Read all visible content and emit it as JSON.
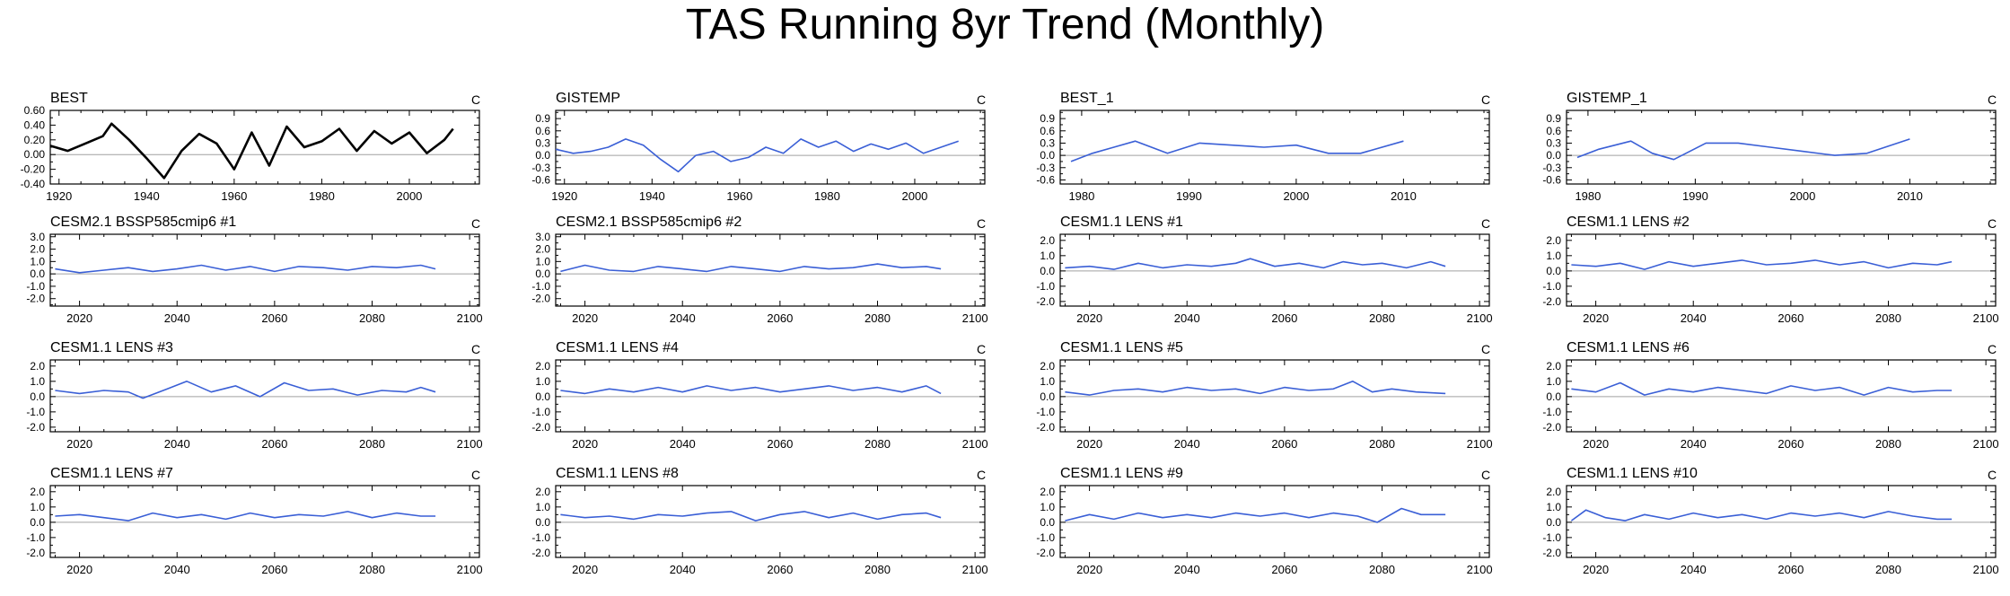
{
  "page": {
    "title": "TAS Running 8yr Trend (Monthly)"
  },
  "colors": {
    "main_series": "#000000",
    "series": "#3a5fd6",
    "zero_line": "#a0a0a0",
    "axes": "#000000"
  },
  "chart_data": [
    {
      "type": "line",
      "title": "BEST",
      "unit_label": "C",
      "xlim": [
        1918,
        2016
      ],
      "ylim": [
        -0.4,
        0.6
      ],
      "xticks": [
        1920,
        1940,
        1960,
        1980,
        2000
      ],
      "yticks": [
        -0.4,
        -0.2,
        0.0,
        0.2,
        0.4,
        0.6
      ],
      "ytick_labels": [
        "-0.40",
        "-0.20",
        "0.00",
        "0.20",
        "0.40",
        "0.60"
      ],
      "line_color": "#000000",
      "line_width": 2.6,
      "x": [
        1918,
        1922,
        1926,
        1930,
        1932,
        1936,
        1940,
        1944,
        1948,
        1952,
        1956,
        1960,
        1964,
        1968,
        1972,
        1976,
        1980,
        1984,
        1988,
        1992,
        1996,
        2000,
        2004,
        2008,
        2010
      ],
      "y": [
        0.12,
        0.05,
        0.15,
        0.25,
        0.42,
        0.2,
        -0.05,
        -0.32,
        0.05,
        0.28,
        0.15,
        -0.2,
        0.3,
        -0.15,
        0.38,
        0.1,
        0.18,
        0.35,
        0.05,
        0.32,
        0.15,
        0.3,
        0.02,
        0.2,
        0.35
      ]
    },
    {
      "type": "line",
      "title": "GISTEMP",
      "unit_label": "C",
      "xlim": [
        1918,
        2016
      ],
      "ylim": [
        -0.7,
        1.1
      ],
      "xticks": [
        1920,
        1940,
        1960,
        1980,
        2000
      ],
      "yticks": [
        -0.6,
        -0.3,
        0.0,
        0.3,
        0.6,
        0.9
      ],
      "ytick_labels": [
        "-0.6",
        "-0.3",
        "0.0",
        "0.3",
        "0.6",
        "0.9"
      ],
      "line_color": "#3a5fd6",
      "line_width": 1.6,
      "x": [
        1918,
        1922,
        1926,
        1930,
        1934,
        1938,
        1942,
        1946,
        1950,
        1954,
        1958,
        1962,
        1966,
        1970,
        1974,
        1978,
        1982,
        1986,
        1990,
        1994,
        1998,
        2002,
        2006,
        2010
      ],
      "y": [
        0.15,
        0.05,
        0.1,
        0.2,
        0.4,
        0.25,
        -0.1,
        -0.4,
        0.0,
        0.1,
        -0.15,
        -0.05,
        0.2,
        0.05,
        0.4,
        0.2,
        0.35,
        0.1,
        0.28,
        0.15,
        0.3,
        0.05,
        0.2,
        0.35
      ]
    },
    {
      "type": "line",
      "title": "BEST_1",
      "unit_label": "C",
      "xlim": [
        1978,
        2018
      ],
      "ylim": [
        -0.7,
        1.1
      ],
      "xticks": [
        1980,
        1990,
        2000,
        2010
      ],
      "yticks": [
        -0.6,
        -0.3,
        0.0,
        0.3,
        0.6,
        0.9
      ],
      "ytick_labels": [
        "-0.6",
        "-0.3",
        "0.0",
        "0.3",
        "0.6",
        "0.9"
      ],
      "line_color": "#3a5fd6",
      "line_width": 1.6,
      "x": [
        1979,
        1981,
        1983,
        1985,
        1988,
        1991,
        1994,
        1997,
        2000,
        2003,
        2006,
        2010
      ],
      "y": [
        -0.15,
        0.05,
        0.2,
        0.35,
        0.05,
        0.3,
        0.25,
        0.2,
        0.25,
        0.05,
        0.05,
        0.35
      ]
    },
    {
      "type": "line",
      "title": "GISTEMP_1",
      "unit_label": "C",
      "xlim": [
        1978,
        2018
      ],
      "ylim": [
        -0.7,
        1.1
      ],
      "xticks": [
        1980,
        1990,
        2000,
        2010
      ],
      "yticks": [
        -0.6,
        -0.3,
        0.0,
        0.3,
        0.6,
        0.9
      ],
      "ytick_labels": [
        "-0.6",
        "-0.3",
        "0.0",
        "0.3",
        "0.6",
        "0.9"
      ],
      "line_color": "#3a5fd6",
      "line_width": 1.6,
      "x": [
        1979,
        1981,
        1984,
        1986,
        1988,
        1991,
        1994,
        1997,
        2000,
        2003,
        2006,
        2010
      ],
      "y": [
        -0.05,
        0.15,
        0.35,
        0.05,
        -0.1,
        0.3,
        0.3,
        0.2,
        0.1,
        0.0,
        0.05,
        0.4
      ]
    },
    {
      "type": "line",
      "title": "CESM2.1 BSSP585cmip6 #1",
      "unit_label": "C",
      "xlim": [
        2014,
        2102
      ],
      "ylim": [
        -2.6,
        3.2
      ],
      "xticks": [
        2020,
        2040,
        2060,
        2080,
        2100
      ],
      "yticks": [
        -2.0,
        -1.0,
        0.0,
        1.0,
        2.0,
        3.0
      ],
      "ytick_labels": [
        "-2.0",
        "-1.0",
        "0.0",
        "1.0",
        "2.0",
        "3.0"
      ],
      "line_color": "#3a5fd6",
      "line_width": 1.6,
      "x": [
        2015,
        2020,
        2025,
        2030,
        2035,
        2040,
        2045,
        2050,
        2055,
        2060,
        2065,
        2070,
        2075,
        2080,
        2085,
        2090,
        2093
      ],
      "y": [
        0.4,
        0.1,
        0.3,
        0.5,
        0.2,
        0.4,
        0.7,
        0.3,
        0.6,
        0.2,
        0.6,
        0.5,
        0.3,
        0.6,
        0.5,
        0.7,
        0.4
      ]
    },
    {
      "type": "line",
      "title": "CESM2.1 BSSP585cmip6 #2",
      "unit_label": "C",
      "xlim": [
        2014,
        2102
      ],
      "ylim": [
        -2.6,
        3.2
      ],
      "xticks": [
        2020,
        2040,
        2060,
        2080,
        2100
      ],
      "yticks": [
        -2.0,
        -1.0,
        0.0,
        1.0,
        2.0,
        3.0
      ],
      "ytick_labels": [
        "-2.0",
        "-1.0",
        "0.0",
        "1.0",
        "2.0",
        "3.0"
      ],
      "line_color": "#3a5fd6",
      "line_width": 1.6,
      "x": [
        2015,
        2020,
        2025,
        2030,
        2035,
        2040,
        2045,
        2050,
        2055,
        2060,
        2065,
        2070,
        2075,
        2080,
        2085,
        2090,
        2093
      ],
      "y": [
        0.2,
        0.7,
        0.3,
        0.2,
        0.6,
        0.4,
        0.2,
        0.6,
        0.4,
        0.2,
        0.6,
        0.4,
        0.5,
        0.8,
        0.5,
        0.6,
        0.4
      ]
    },
    {
      "type": "line",
      "title": "CESM1.1 LENS #1",
      "unit_label": "C",
      "xlim": [
        2014,
        2102
      ],
      "ylim": [
        -2.3,
        2.4
      ],
      "xticks": [
        2020,
        2040,
        2060,
        2080,
        2100
      ],
      "yticks": [
        -2.0,
        -1.0,
        0.0,
        1.0,
        2.0
      ],
      "ytick_labels": [
        "-2.0",
        "-1.0",
        "0.0",
        "1.0",
        "2.0"
      ],
      "line_color": "#3a5fd6",
      "line_width": 1.6,
      "x": [
        2015,
        2020,
        2025,
        2030,
        2035,
        2040,
        2045,
        2050,
        2053,
        2058,
        2063,
        2068,
        2072,
        2076,
        2080,
        2085,
        2090,
        2093
      ],
      "y": [
        0.2,
        0.3,
        0.1,
        0.5,
        0.2,
        0.4,
        0.3,
        0.5,
        0.8,
        0.3,
        0.5,
        0.2,
        0.6,
        0.4,
        0.5,
        0.2,
        0.6,
        0.3
      ]
    },
    {
      "type": "line",
      "title": "CESM1.1 LENS #2",
      "unit_label": "C",
      "xlim": [
        2014,
        2102
      ],
      "ylim": [
        -2.3,
        2.4
      ],
      "xticks": [
        2020,
        2040,
        2060,
        2080,
        2100
      ],
      "yticks": [
        -2.0,
        -1.0,
        0.0,
        1.0,
        2.0
      ],
      "ytick_labels": [
        "-2.0",
        "-1.0",
        "0.0",
        "1.0",
        "2.0"
      ],
      "line_color": "#3a5fd6",
      "line_width": 1.6,
      "x": [
        2015,
        2020,
        2025,
        2030,
        2035,
        2040,
        2045,
        2050,
        2055,
        2060,
        2065,
        2070,
        2075,
        2080,
        2085,
        2090,
        2093
      ],
      "y": [
        0.4,
        0.3,
        0.5,
        0.1,
        0.6,
        0.3,
        0.5,
        0.7,
        0.4,
        0.5,
        0.7,
        0.4,
        0.6,
        0.2,
        0.5,
        0.4,
        0.6
      ]
    },
    {
      "type": "line",
      "title": "CESM1.1 LENS #3",
      "unit_label": "C",
      "xlim": [
        2014,
        2102
      ],
      "ylim": [
        -2.3,
        2.4
      ],
      "xticks": [
        2020,
        2040,
        2060,
        2080,
        2100
      ],
      "yticks": [
        -2.0,
        -1.0,
        0.0,
        1.0,
        2.0
      ],
      "ytick_labels": [
        "-2.0",
        "-1.0",
        "0.0",
        "1.0",
        "2.0"
      ],
      "line_color": "#3a5fd6",
      "line_width": 1.6,
      "x": [
        2015,
        2020,
        2025,
        2030,
        2033,
        2038,
        2042,
        2047,
        2052,
        2057,
        2062,
        2067,
        2072,
        2077,
        2082,
        2087,
        2090,
        2093
      ],
      "y": [
        0.4,
        0.2,
        0.4,
        0.3,
        -0.1,
        0.5,
        1.0,
        0.3,
        0.7,
        0.0,
        0.9,
        0.4,
        0.5,
        0.1,
        0.4,
        0.3,
        0.6,
        0.3
      ]
    },
    {
      "type": "line",
      "title": "CESM1.1 LENS #4",
      "unit_label": "C",
      "xlim": [
        2014,
        2102
      ],
      "ylim": [
        -2.3,
        2.4
      ],
      "xticks": [
        2020,
        2040,
        2060,
        2080,
        2100
      ],
      "yticks": [
        -2.0,
        -1.0,
        0.0,
        1.0,
        2.0
      ],
      "ytick_labels": [
        "-2.0",
        "-1.0",
        "0.0",
        "1.0",
        "2.0"
      ],
      "line_color": "#3a5fd6",
      "line_width": 1.6,
      "x": [
        2015,
        2020,
        2025,
        2030,
        2035,
        2040,
        2045,
        2050,
        2055,
        2060,
        2065,
        2070,
        2075,
        2080,
        2085,
        2090,
        2093
      ],
      "y": [
        0.4,
        0.2,
        0.5,
        0.3,
        0.6,
        0.3,
        0.7,
        0.4,
        0.6,
        0.3,
        0.5,
        0.7,
        0.4,
        0.6,
        0.3,
        0.7,
        0.2
      ]
    },
    {
      "type": "line",
      "title": "CESM1.1 LENS #5",
      "unit_label": "C",
      "xlim": [
        2014,
        2102
      ],
      "ylim": [
        -2.3,
        2.4
      ],
      "xticks": [
        2020,
        2040,
        2060,
        2080,
        2100
      ],
      "yticks": [
        -2.0,
        -1.0,
        0.0,
        1.0,
        2.0
      ],
      "ytick_labels": [
        "-2.0",
        "-1.0",
        "0.0",
        "1.0",
        "2.0"
      ],
      "line_color": "#3a5fd6",
      "line_width": 1.6,
      "x": [
        2015,
        2020,
        2025,
        2030,
        2035,
        2040,
        2045,
        2050,
        2055,
        2060,
        2065,
        2070,
        2074,
        2078,
        2082,
        2087,
        2093
      ],
      "y": [
        0.3,
        0.1,
        0.4,
        0.5,
        0.3,
        0.6,
        0.4,
        0.5,
        0.2,
        0.6,
        0.4,
        0.5,
        1.0,
        0.3,
        0.5,
        0.3,
        0.2
      ]
    },
    {
      "type": "line",
      "title": "CESM1.1 LENS #6",
      "unit_label": "C",
      "xlim": [
        2014,
        2102
      ],
      "ylim": [
        -2.3,
        2.4
      ],
      "xticks": [
        2020,
        2040,
        2060,
        2080,
        2100
      ],
      "yticks": [
        -2.0,
        -1.0,
        0.0,
        1.0,
        2.0
      ],
      "ytick_labels": [
        "-2.0",
        "-1.0",
        "0.0",
        "1.0",
        "2.0"
      ],
      "line_color": "#3a5fd6",
      "line_width": 1.6,
      "x": [
        2015,
        2020,
        2025,
        2030,
        2035,
        2040,
        2045,
        2050,
        2055,
        2060,
        2065,
        2070,
        2075,
        2080,
        2085,
        2090,
        2093
      ],
      "y": [
        0.5,
        0.3,
        0.9,
        0.1,
        0.5,
        0.3,
        0.6,
        0.4,
        0.2,
        0.7,
        0.4,
        0.6,
        0.1,
        0.6,
        0.3,
        0.4,
        0.4
      ]
    },
    {
      "type": "line",
      "title": "CESM1.1 LENS #7",
      "unit_label": "C",
      "xlim": [
        2014,
        2102
      ],
      "ylim": [
        -2.3,
        2.4
      ],
      "xticks": [
        2020,
        2040,
        2060,
        2080,
        2100
      ],
      "yticks": [
        -2.0,
        -1.0,
        0.0,
        1.0,
        2.0
      ],
      "ytick_labels": [
        "-2.0",
        "-1.0",
        "0.0",
        "1.0",
        "2.0"
      ],
      "line_color": "#3a5fd6",
      "line_width": 1.6,
      "x": [
        2015,
        2020,
        2025,
        2030,
        2035,
        2040,
        2045,
        2050,
        2055,
        2060,
        2065,
        2070,
        2075,
        2080,
        2085,
        2090,
        2093
      ],
      "y": [
        0.4,
        0.5,
        0.3,
        0.1,
        0.6,
        0.3,
        0.5,
        0.2,
        0.6,
        0.3,
        0.5,
        0.4,
        0.7,
        0.3,
        0.6,
        0.4,
        0.4
      ]
    },
    {
      "type": "line",
      "title": "CESM1.1 LENS #8",
      "unit_label": "C",
      "xlim": [
        2014,
        2102
      ],
      "ylim": [
        -2.3,
        2.4
      ],
      "xticks": [
        2020,
        2040,
        2060,
        2080,
        2100
      ],
      "yticks": [
        -2.0,
        -1.0,
        0.0,
        1.0,
        2.0
      ],
      "ytick_labels": [
        "-2.0",
        "-1.0",
        "0.0",
        "1.0",
        "2.0"
      ],
      "line_color": "#3a5fd6",
      "line_width": 1.6,
      "x": [
        2015,
        2020,
        2025,
        2030,
        2035,
        2040,
        2045,
        2050,
        2055,
        2060,
        2065,
        2070,
        2075,
        2080,
        2085,
        2090,
        2093
      ],
      "y": [
        0.5,
        0.3,
        0.4,
        0.2,
        0.5,
        0.4,
        0.6,
        0.7,
        0.1,
        0.5,
        0.7,
        0.3,
        0.6,
        0.2,
        0.5,
        0.6,
        0.3
      ]
    },
    {
      "type": "line",
      "title": "CESM1.1 LENS #9",
      "unit_label": "C",
      "xlim": [
        2014,
        2102
      ],
      "ylim": [
        -2.3,
        2.4
      ],
      "xticks": [
        2020,
        2040,
        2060,
        2080,
        2100
      ],
      "yticks": [
        -2.0,
        -1.0,
        0.0,
        1.0,
        2.0
      ],
      "ytick_labels": [
        "-2.0",
        "-1.0",
        "0.0",
        "1.0",
        "2.0"
      ],
      "line_color": "#3a5fd6",
      "line_width": 1.6,
      "x": [
        2015,
        2020,
        2025,
        2030,
        2035,
        2040,
        2045,
        2050,
        2055,
        2060,
        2065,
        2070,
        2075,
        2079,
        2084,
        2088,
        2093
      ],
      "y": [
        0.1,
        0.5,
        0.2,
        0.6,
        0.3,
        0.5,
        0.3,
        0.6,
        0.4,
        0.6,
        0.3,
        0.6,
        0.4,
        0.0,
        0.9,
        0.5,
        0.5
      ]
    },
    {
      "type": "line",
      "title": "CESM1.1 LENS #10",
      "unit_label": "C",
      "xlim": [
        2014,
        2102
      ],
      "ylim": [
        -2.3,
        2.4
      ],
      "xticks": [
        2020,
        2040,
        2060,
        2080,
        2100
      ],
      "yticks": [
        -2.0,
        -1.0,
        0.0,
        1.0,
        2.0
      ],
      "ytick_labels": [
        "-2.0",
        "-1.0",
        "0.0",
        "1.0",
        "2.0"
      ],
      "line_color": "#3a5fd6",
      "line_width": 1.6,
      "x": [
        2015,
        2018,
        2022,
        2026,
        2030,
        2035,
        2040,
        2045,
        2050,
        2055,
        2060,
        2065,
        2070,
        2075,
        2080,
        2085,
        2090,
        2093
      ],
      "y": [
        0.1,
        0.8,
        0.3,
        0.1,
        0.5,
        0.2,
        0.6,
        0.3,
        0.5,
        0.2,
        0.6,
        0.4,
        0.6,
        0.3,
        0.7,
        0.4,
        0.2,
        0.2
      ]
    }
  ]
}
